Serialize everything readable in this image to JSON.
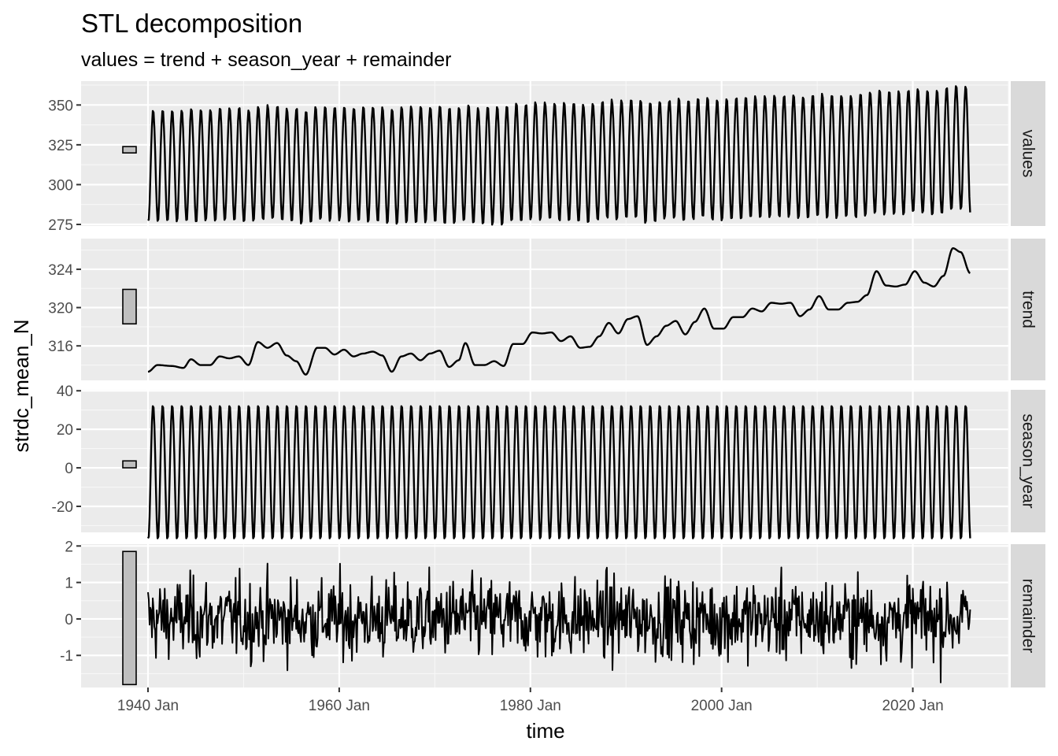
{
  "chart_data": {
    "type": "line",
    "title": "STL decomposition",
    "subtitle": "values = trend + season_year + remainder",
    "xlabel": "time",
    "ylabel": "strdc_mean_N",
    "x_start": 1940.0,
    "x_end": 2026.0,
    "xlim": [
      1933.0,
      2030.0
    ],
    "x_ticks": [
      {
        "value": 1940,
        "label": "1940 Jan"
      },
      {
        "value": 1960,
        "label": "1960 Jan"
      },
      {
        "value": 1980,
        "label": "1980 Jan"
      },
      {
        "value": 2000,
        "label": "2000 Jan"
      },
      {
        "value": 2020,
        "label": "2020 Jan"
      }
    ],
    "grid": true,
    "facets": [
      {
        "name": "values",
        "ylim": [
          274,
          365
        ],
        "y_ticks": [
          {
            "value": 350,
            "label": "350"
          },
          {
            "value": 325,
            "label": "325"
          },
          {
            "value": 300,
            "label": "300"
          },
          {
            "value": 275,
            "label": "275"
          }
        ],
        "scale_bar": [
          319.9,
          323.9
        ],
        "approx": "seasonal oscillation around trend; min ~280 to max ~352 early, rising to ~289-364 by 2025"
      },
      {
        "name": "trend",
        "ylim": [
          312.4,
          327.2
        ],
        "y_ticks": [
          {
            "value": 324,
            "label": "324"
          },
          {
            "value": 320,
            "label": "320"
          },
          {
            "value": 316,
            "label": "316"
          }
        ],
        "scale_bar": [
          318.3,
          321.9
        ],
        "knots": [
          [
            1940.0,
            313.3
          ],
          [
            1941.0,
            314.0
          ],
          [
            1942.5,
            313.9
          ],
          [
            1943.7,
            313.7
          ],
          [
            1944.5,
            314.6
          ],
          [
            1945.5,
            314.0
          ],
          [
            1946.5,
            314.0
          ],
          [
            1947.5,
            314.9
          ],
          [
            1948.5,
            314.7
          ],
          [
            1949.5,
            314.9
          ],
          [
            1950.5,
            314.0
          ],
          [
            1951.5,
            316.4
          ],
          [
            1952.5,
            315.8
          ],
          [
            1953.5,
            316.3
          ],
          [
            1954.5,
            315.0
          ],
          [
            1955.5,
            314.4
          ],
          [
            1956.5,
            313.0
          ],
          [
            1957.7,
            315.8
          ],
          [
            1958.5,
            315.8
          ],
          [
            1959.5,
            315.1
          ],
          [
            1960.5,
            315.6
          ],
          [
            1961.5,
            314.9
          ],
          [
            1962.5,
            315.2
          ],
          [
            1963.5,
            315.4
          ],
          [
            1964.5,
            315.0
          ],
          [
            1965.5,
            313.3
          ],
          [
            1966.5,
            314.9
          ],
          [
            1967.5,
            315.2
          ],
          [
            1968.5,
            314.5
          ],
          [
            1969.5,
            315.2
          ],
          [
            1970.5,
            315.5
          ],
          [
            1971.5,
            313.8
          ],
          [
            1972.5,
            314.5
          ],
          [
            1973.2,
            316.3
          ],
          [
            1974.2,
            314.0
          ],
          [
            1975.2,
            314.0
          ],
          [
            1976.2,
            314.4
          ],
          [
            1977.2,
            313.9
          ],
          [
            1978.2,
            316.2
          ],
          [
            1979.2,
            316.2
          ],
          [
            1980.2,
            317.4
          ],
          [
            1981.2,
            317.3
          ],
          [
            1982.2,
            317.4
          ],
          [
            1983.2,
            316.5
          ],
          [
            1984.2,
            317.0
          ],
          [
            1985.2,
            315.8
          ],
          [
            1986.2,
            315.9
          ],
          [
            1987.2,
            317.0
          ],
          [
            1988.2,
            318.4
          ],
          [
            1989.2,
            317.3
          ],
          [
            1990.2,
            318.8
          ],
          [
            1991.2,
            319.1
          ],
          [
            1992.2,
            316.1
          ],
          [
            1993.2,
            317.0
          ],
          [
            1994.2,
            318.1
          ],
          [
            1995.2,
            318.6
          ],
          [
            1996.2,
            317.2
          ],
          [
            1997.2,
            318.5
          ],
          [
            1998.2,
            319.9
          ],
          [
            1999.2,
            317.8
          ],
          [
            2000.2,
            317.8
          ],
          [
            2001.2,
            319.0
          ],
          [
            2002.2,
            319.0
          ],
          [
            2003.2,
            319.9
          ],
          [
            2004.2,
            319.6
          ],
          [
            2005.2,
            320.5
          ],
          [
            2006.2,
            320.4
          ],
          [
            2007.2,
            320.5
          ],
          [
            2008.2,
            319.1
          ],
          [
            2009.2,
            319.8
          ],
          [
            2010.2,
            321.2
          ],
          [
            2011.2,
            319.8
          ],
          [
            2012.2,
            319.8
          ],
          [
            2013.2,
            320.5
          ],
          [
            2014.2,
            320.6
          ],
          [
            2015.2,
            321.3
          ],
          [
            2016.2,
            323.8
          ],
          [
            2017.2,
            322.3
          ],
          [
            2018.2,
            322.2
          ],
          [
            2019.2,
            322.4
          ],
          [
            2020.2,
            323.8
          ],
          [
            2021.2,
            322.6
          ],
          [
            2022.2,
            322.2
          ],
          [
            2023.2,
            323.3
          ],
          [
            2024.2,
            326.2
          ],
          [
            2025.0,
            325.8
          ],
          [
            2026.0,
            323.6
          ]
        ]
      },
      {
        "name": "season_year",
        "ylim": [
          -33.5,
          40.5
        ],
        "y_ticks": [
          {
            "value": 40,
            "label": "40"
          },
          {
            "value": 20,
            "label": "20"
          },
          {
            "value": 0,
            "label": "0"
          },
          {
            "value": -20,
            "label": "-20"
          }
        ],
        "scale_bar": [
          0.0,
          3.6
        ],
        "amplitude_max": 37.5,
        "amplitude_min": -32.8,
        "approx": "annual cycle, period 1 year"
      },
      {
        "name": "remainder",
        "ylim": [
          -1.88,
          2.05
        ],
        "y_ticks": [
          {
            "value": 2,
            "label": "2"
          },
          {
            "value": 1,
            "label": "1"
          },
          {
            "value": 0,
            "label": "0"
          },
          {
            "value": -1,
            "label": "-1"
          }
        ],
        "scale_bar": [
          -1.8,
          1.85
        ],
        "approx": "noise roughly within -1.8 to 1.85"
      }
    ]
  }
}
